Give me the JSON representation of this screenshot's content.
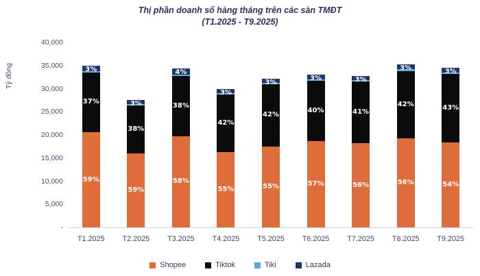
{
  "title": {
    "line1": "Thị phần doanh số hàng tháng trên các sàn TMĐT",
    "line2": "(T1.2025 - T9.2025)"
  },
  "y_axis": {
    "label": "Tỷ đồng",
    "ticks": [
      "40,000",
      "35,000",
      "30,000",
      "25,000",
      "20,000",
      "15,000",
      "10,000",
      "5,000",
      "-"
    ]
  },
  "legend": {
    "items": [
      {
        "label": "Shopee",
        "color": "#DF6C3B"
      },
      {
        "label": "Tiktok",
        "color": "#0B0B0B"
      },
      {
        "label": "Tiki",
        "color": "#5AA9DE"
      },
      {
        "label": "Lazada",
        "color": "#1F3468"
      }
    ]
  },
  "colors": {
    "title_text": "#2B2E5C",
    "axis_text": "#474A6E",
    "axis_line": "#D4D4D4",
    "data_label_text": "#FFFFFF"
  },
  "chart_data": {
    "type": "bar",
    "stacked": true,
    "title": "Thị phần doanh số hàng tháng trên các sàn TMĐT (T1.2025 - T9.2025)",
    "xlabel": "",
    "ylabel": "Tỷ đồng",
    "ylim": [
      0,
      40000
    ],
    "grid": false,
    "legend_position": "bottom",
    "categories": [
      "T1.2025",
      "T2.2025",
      "T3.2025",
      "T4.2025",
      "T5.2025",
      "T6.2025",
      "T7.2025",
      "T8.2025",
      "T9.2025"
    ],
    "bar_totals_ty_dong": [
      34900,
      27500,
      34400,
      30000,
      32200,
      33000,
      32800,
      35200,
      34500
    ],
    "series": [
      {
        "name": "Shopee",
        "color": "#DF6C3B",
        "labels_shown": true,
        "share_pct": [
          59,
          59,
          58,
          55,
          55,
          57,
          56,
          56,
          54
        ]
      },
      {
        "name": "Tiktok",
        "color": "#0B0B0B",
        "labels_shown": true,
        "share_pct": [
          37,
          38,
          38,
          42,
          42,
          40,
          41,
          42,
          43
        ]
      },
      {
        "name": "Tiki",
        "color": "#5AA9DE",
        "labels_shown": false,
        "share_pct": [
          1,
          1,
          1,
          1,
          1,
          1,
          1,
          1,
          1
        ]
      },
      {
        "name": "Lazada",
        "color": "#1F3468",
        "labels_shown": true,
        "share_pct": [
          3,
          3,
          4,
          3,
          3,
          3,
          3,
          3,
          3
        ]
      }
    ]
  }
}
